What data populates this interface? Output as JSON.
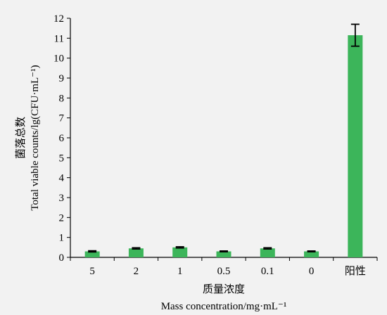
{
  "chart_data": {
    "type": "bar",
    "categories": [
      "5",
      "2",
      "1",
      "0.5",
      "0.1",
      "0",
      "阳性"
    ],
    "values": [
      0.3,
      0.45,
      0.5,
      0.3,
      0.45,
      0.3,
      11.15
    ],
    "errors": [
      0.03,
      0.03,
      0.03,
      0.02,
      0.03,
      0.02,
      0.55
    ],
    "ylim": [
      0,
      12
    ],
    "yticks": [
      0,
      1,
      2,
      3,
      4,
      5,
      6,
      7,
      8,
      9,
      10,
      11,
      12
    ],
    "xlabel_cn": "质量浓度",
    "xlabel_en": "Mass concentration/mg·mL⁻¹",
    "ylabel_cn": "菌落总数",
    "ylabel_en": "Total viable counts/lg(CFU·mL⁻¹)",
    "grid": false,
    "bar_color": "#3cb55a"
  }
}
